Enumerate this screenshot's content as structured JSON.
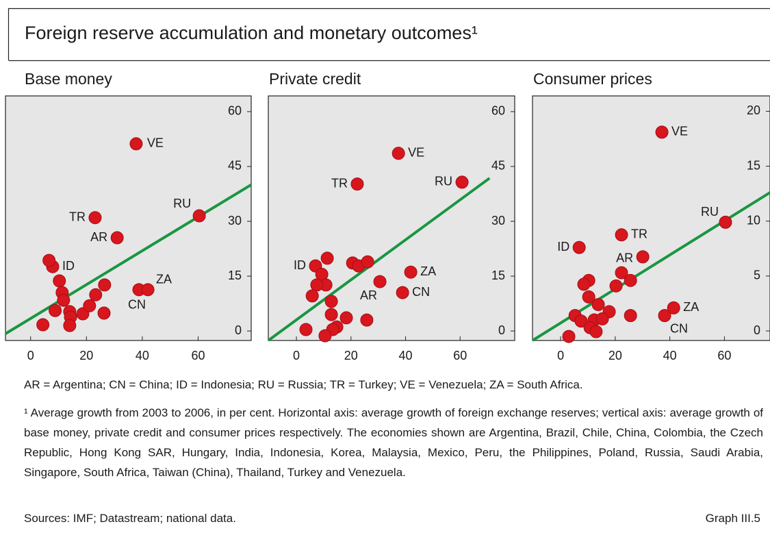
{
  "title": "Foreign reserve accumulation and monetary outcomes¹",
  "chart_data": [
    {
      "type": "scatter",
      "title": "Base money",
      "color": "#d7161e",
      "xlim": [
        -9,
        79
      ],
      "ylim": [
        -2.6,
        64.3
      ],
      "xticks": [
        0,
        20,
        40,
        60
      ],
      "yticks": [
        0,
        15,
        30,
        45,
        60
      ],
      "x": [
        37.8,
        60.4,
        23.1,
        31.0,
        7.9,
        6.6,
        10.3,
        11.3,
        11.8,
        8.8,
        14.0,
        14.3,
        14.0,
        4.4,
        18.7,
        21.1,
        23.3,
        26.5,
        26.3,
        38.8,
        42.0
      ],
      "values": [
        51.2,
        31.5,
        31.0,
        25.5,
        17.6,
        19.3,
        13.7,
        10.5,
        8.4,
        5.6,
        5.3,
        3.8,
        1.5,
        1.7,
        4.7,
        6.9,
        9.9,
        12.6,
        4.9,
        11.3,
        11.3
      ],
      "labels": [
        "VE",
        "RU",
        "TR",
        "AR",
        "ID",
        null,
        null,
        null,
        null,
        null,
        null,
        null,
        null,
        null,
        null,
        null,
        null,
        null,
        null,
        "CN",
        "ZA"
      ],
      "fit_line": {
        "color": "#1a9641",
        "x": [
          -9,
          79
        ],
        "y": [
          -0.75,
          40
        ]
      }
    },
    {
      "type": "scatter",
      "title": "Private credit",
      "color": "#d7161e",
      "xlim": [
        -10.3,
        80
      ],
      "ylim": [
        -2.6,
        64.3
      ],
      "xticks": [
        0,
        20,
        40,
        60
      ],
      "yticks": [
        0,
        15,
        30,
        45,
        60
      ],
      "x": [
        37.4,
        60.7,
        22.3,
        7.0,
        11.3,
        9.3,
        10.8,
        7.5,
        5.8,
        12.8,
        12.8,
        18.3,
        14.8,
        13.3,
        10.5,
        3.5,
        25.8,
        20.6,
        22.8,
        26.1,
        30.6,
        41.9,
        38.9
      ],
      "values": [
        48.6,
        40.7,
        40.2,
        17.8,
        19.9,
        15.5,
        12.6,
        12.6,
        9.6,
        8.1,
        4.5,
        3.6,
        1.1,
        0.4,
        -1.3,
        0.4,
        3.0,
        18.6,
        17.8,
        18.9,
        13.5,
        16.1,
        10.5
      ],
      "labels": [
        "VE",
        "RU",
        "TR",
        "ID",
        null,
        null,
        null,
        null,
        null,
        null,
        null,
        null,
        null,
        null,
        null,
        null,
        null,
        null,
        null,
        null,
        "AR",
        "ZA",
        "CN"
      ],
      "fit_line": {
        "color": "#1a9641",
        "x": [
          -10.3,
          70.8
        ],
        "y": [
          -2.6,
          41.8
        ]
      }
    },
    {
      "type": "scatter",
      "title": "Consumer prices",
      "color": "#d7161e",
      "xlim": [
        -10.3,
        76.7
      ],
      "ylim": [
        -0.87,
        21.4
      ],
      "xticks": [
        0,
        20,
        40,
        60
      ],
      "yticks": [
        0,
        5,
        10,
        15,
        20
      ],
      "x": [
        37.1,
        60.4,
        22.3,
        6.8,
        30.1,
        22.3,
        25.6,
        20.3,
        10.3,
        8.5,
        10.3,
        13.8,
        17.8,
        5.3,
        7.5,
        12.3,
        15.3,
        10.8,
        13.0,
        3.0,
        25.6,
        41.4,
        38.1
      ],
      "values": [
        18.1,
        9.9,
        8.75,
        7.6,
        6.75,
        5.3,
        4.6,
        4.1,
        4.6,
        4.25,
        3.1,
        2.4,
        1.75,
        1.4,
        0.9,
        1.0,
        1.1,
        0.3,
        -0.06,
        -0.5,
        1.4,
        2.1,
        1.4
      ],
      "labels": [
        "VE",
        "RU",
        "TR",
        "ID",
        "AR",
        null,
        null,
        null,
        null,
        null,
        null,
        null,
        null,
        null,
        null,
        null,
        null,
        null,
        null,
        null,
        null,
        "ZA",
        "CN"
      ],
      "fit_line": {
        "color": "#1a9641",
        "x": [
          -10.3,
          76.7
        ],
        "y": [
          -0.87,
          12.6
        ]
      }
    }
  ],
  "legend_note": "AR = Argentina; CN = China; ID = Indonesia; RU = Russia; TR = Turkey; VE = Venezuela; ZA = South Africa.",
  "footnote": "¹ Average growth from 2003 to 2006, in per cent. Horizontal axis: average growth of foreign exchange reserves; vertical axis: average growth of base money, private credit and consumer prices respectively. The economies shown are Argentina, Brazil, Chile, China, Colombia, the Czech Republic, Hong Kong SAR, Hungary, India, Indonesia, Korea, Malaysia, Mexico, Peru, the Philippines, Poland, Russia, Saudi Arabia, Singapore, South Africa, Taiwan (China), Thailand, Turkey and Venezuela.",
  "sources": "Sources: IMF; Datastream; national data.",
  "graph_id": "Graph III.5"
}
